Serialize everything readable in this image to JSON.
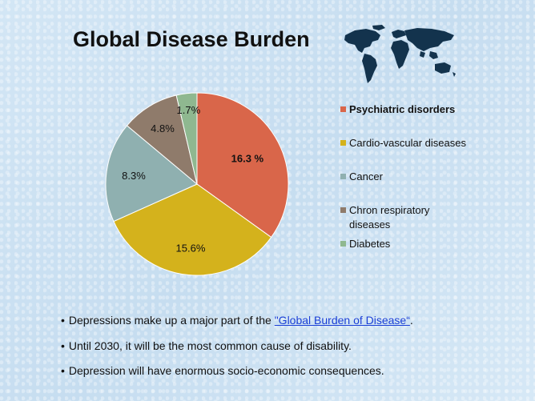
{
  "slide": {
    "title": "Global Disease Burden",
    "bullets": [
      {
        "text": "Depressions make up a major part of the ",
        "link": "\"Global Burden of Disease“",
        "after": "."
      },
      {
        "text": "Until 2030, it will be the most common cause of disability.",
        "link": "",
        "after": ""
      },
      {
        "text": "Depression will have enormous socio-economic consequences.",
        "link": "",
        "after": ""
      }
    ],
    "map_icon": "world-map-icon"
  },
  "chart_data": {
    "type": "pie",
    "title": "",
    "slices": [
      {
        "label": "Psychiatric disorders",
        "value": 16.3,
        "display": "16.3 %",
        "color": "#d9664a",
        "bold": true
      },
      {
        "label": "Cardio-vascular diseases",
        "value": 15.6,
        "display": "15.6%",
        "color": "#d4b21c",
        "bold": false
      },
      {
        "label": "Cancer",
        "value": 8.3,
        "display": "8.3%",
        "color": "#8fb0b0",
        "bold": false
      },
      {
        "label": "Chron respiratory diseases",
        "value": 4.8,
        "display": "4.8%",
        "color": "#8f7b6b",
        "bold": false
      },
      {
        "label": "Diabetes",
        "value": 1.7,
        "display": "1.7%",
        "color": "#8fb890",
        "bold": false
      }
    ],
    "legend_position": "right",
    "start_angle_deg": 0,
    "direction": "clockwise"
  }
}
